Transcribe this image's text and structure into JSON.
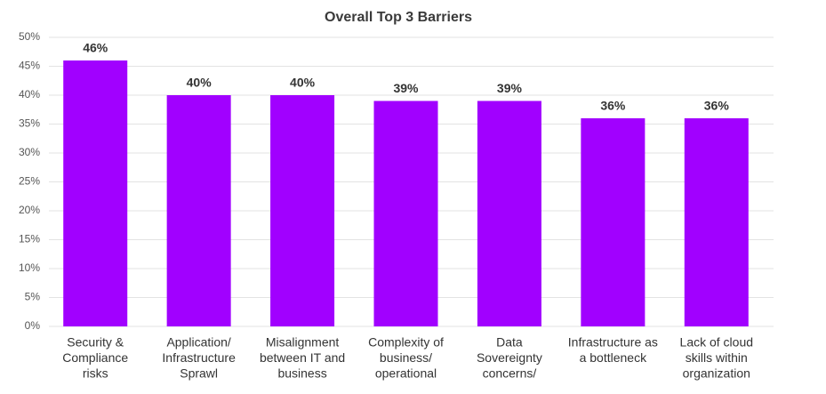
{
  "chart_data": {
    "type": "bar",
    "title": "Overall Top 3 Barriers",
    "categories": [
      [
        "Security &",
        "Compliance",
        "risks"
      ],
      [
        "Application/",
        "Infrastructure",
        "Sprawl"
      ],
      [
        "Misalignment",
        "between IT and",
        "business"
      ],
      [
        "Complexity of",
        "business/",
        "operational"
      ],
      [
        "Data",
        "Sovereignty",
        "concerns/"
      ],
      [
        "Infrastructure as",
        "a bottleneck"
      ],
      [
        "Lack of cloud",
        "skills within",
        "organization"
      ]
    ],
    "values": [
      46,
      40,
      40,
      39,
      39,
      36,
      36
    ],
    "value_labels": [
      "46%",
      "40%",
      "40%",
      "39%",
      "39%",
      "36%",
      "36%"
    ],
    "color": "#a100ff",
    "ylim": [
      0,
      50
    ],
    "yticks": [
      {
        "value": 0,
        "label": "0%"
      },
      {
        "value": 5,
        "label": "5%"
      },
      {
        "value": 10,
        "label": "10%"
      },
      {
        "value": 15,
        "label": "15%"
      },
      {
        "value": 20,
        "label": "20%"
      },
      {
        "value": 25,
        "label": "25%"
      },
      {
        "value": 30,
        "label": "30%"
      },
      {
        "value": 35,
        "label": "35%"
      },
      {
        "value": 40,
        "label": "40%"
      },
      {
        "value": 45,
        "label": "45%"
      },
      {
        "value": 50,
        "label": "50%"
      }
    ],
    "grid": true
  }
}
